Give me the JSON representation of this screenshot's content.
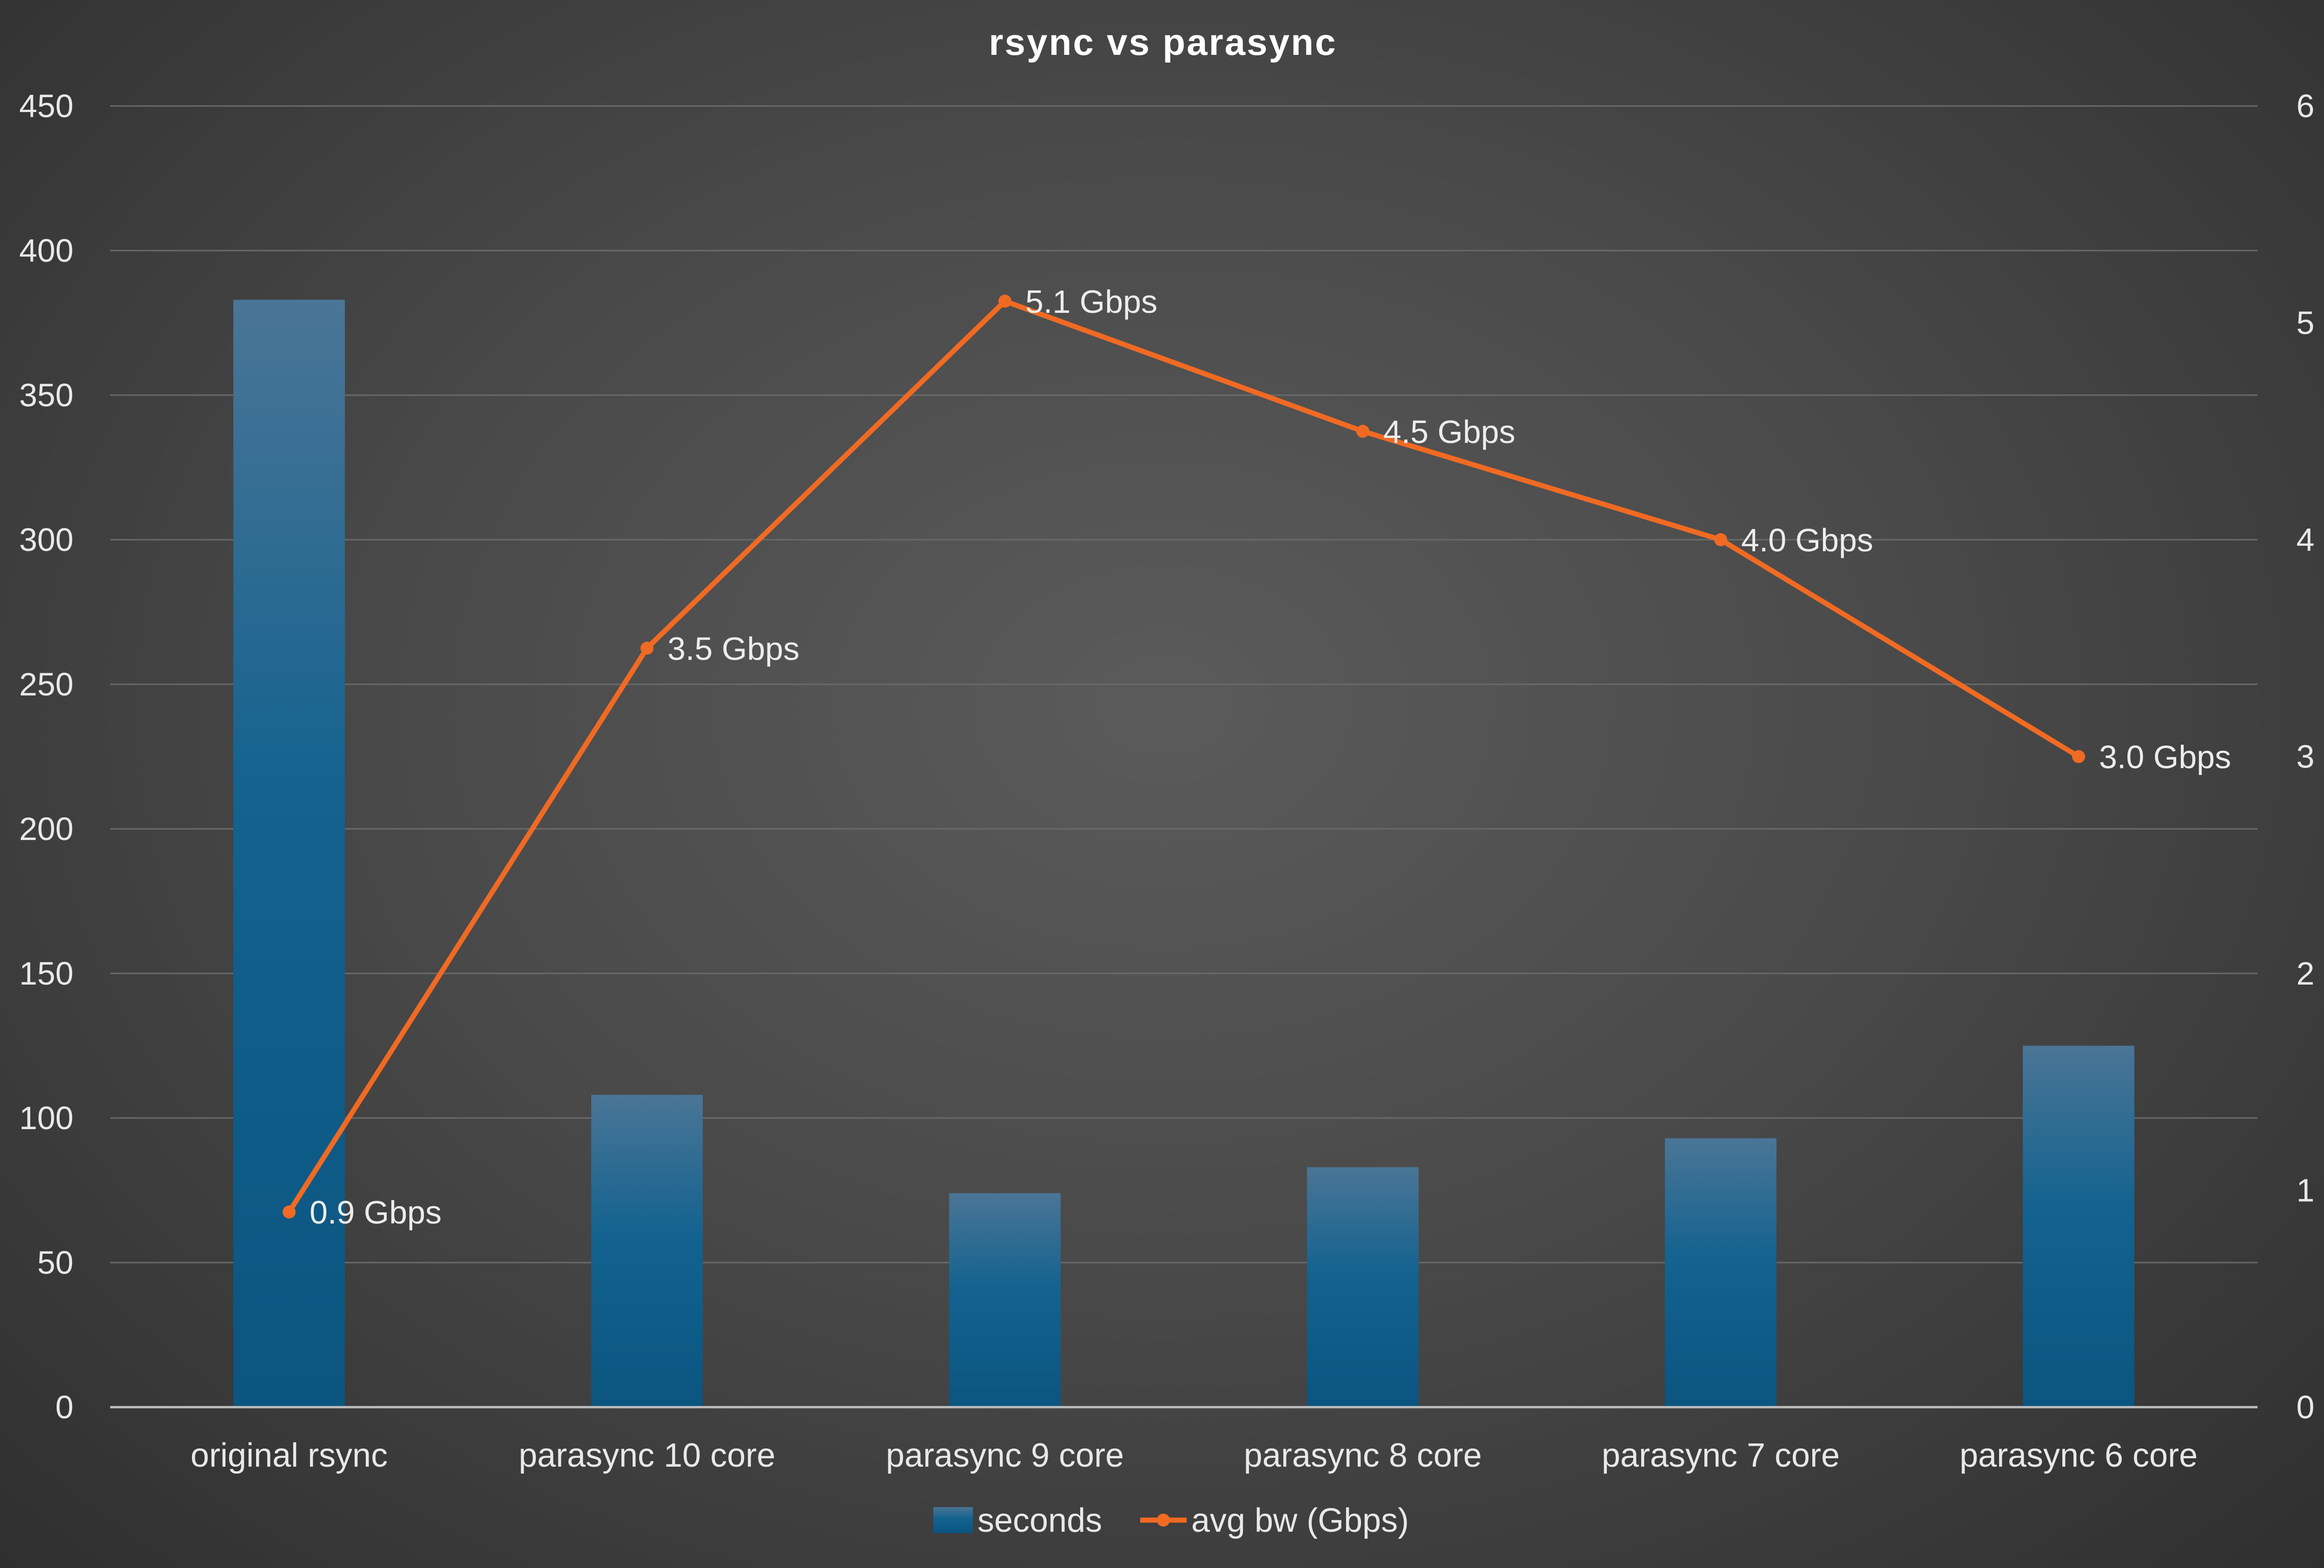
{
  "chart_data": {
    "type": "bar",
    "title": "rsync vs parasync",
    "categories": [
      "original rsync",
      "parasync 10 core",
      "parasync 9 core",
      "parasync 8 core",
      "parasync 7 core",
      "parasync 6 core"
    ],
    "series": [
      {
        "name": "seconds",
        "type": "bar",
        "axis": "left",
        "color": "#0e5a84",
        "values": [
          383,
          108,
          74,
          83,
          93,
          125
        ]
      },
      {
        "name": "avg bw (Gbps)",
        "type": "line",
        "axis": "right",
        "color": "#f06a23",
        "values": [
          0.9,
          3.5,
          5.1,
          4.5,
          4.0,
          3.0
        ],
        "labels": [
          "0.9 Gbps",
          "3.5 Gbps",
          "5.1 Gbps",
          "4.5 Gbps",
          "4.0 Gbps",
          "3.0 Gbps"
        ]
      }
    ],
    "y_left": {
      "ylim": [
        0,
        450
      ],
      "ticks": [
        "0",
        "50",
        "100",
        "150",
        "200",
        "250",
        "300",
        "350",
        "400",
        "450"
      ]
    },
    "y_right": {
      "ylim": [
        0,
        6
      ],
      "ticks": [
        "0",
        "1",
        "2",
        "3",
        "4",
        "5",
        "6"
      ]
    },
    "grid": true,
    "legend": "bottom"
  }
}
